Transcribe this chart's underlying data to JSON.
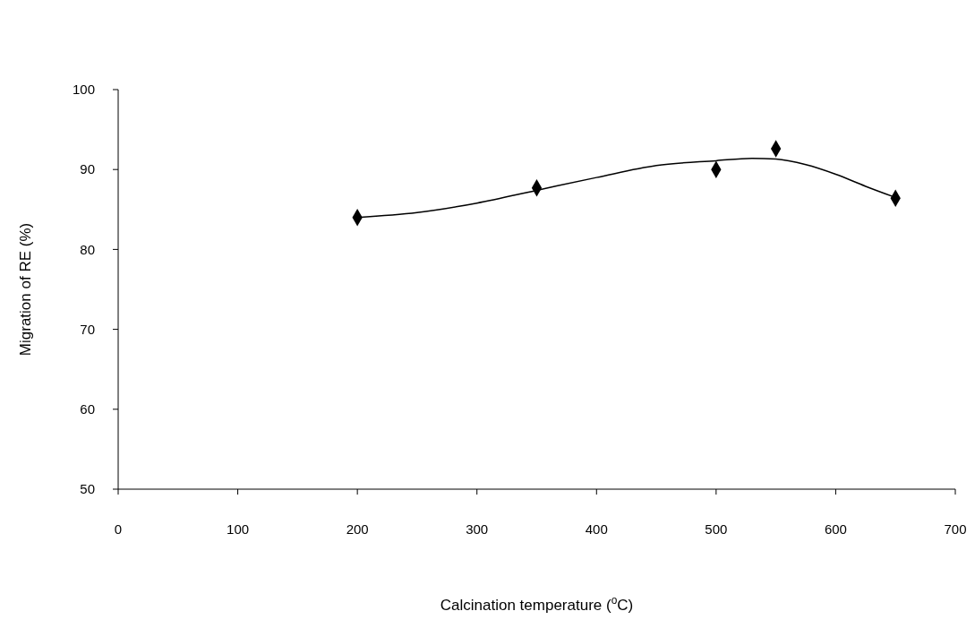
{
  "chart_data": {
    "type": "scatter",
    "xlabel": "Calcination temperature ($^{o}$C)",
    "ylabel": "Migration of RE (%)",
    "xlim": [
      0,
      700
    ],
    "xticks": [
      0,
      100,
      200,
      300,
      400,
      500,
      600,
      700
    ],
    "ylim": [
      50,
      100
    ],
    "yticks": [
      50,
      60,
      70,
      80,
      90,
      100
    ],
    "grid": false,
    "series": [
      {
        "type": "line",
        "color": "#000000",
        "marker": "none",
        "line_style": "solid",
        "x": [
          200,
          250,
          300,
          350,
          400,
          450,
          500,
          530,
          550,
          575,
          600,
          625,
          650
        ],
        "values": [
          84.0,
          84.6,
          85.8,
          87.4,
          89.0,
          90.5,
          91.1,
          91.4,
          91.3,
          90.6,
          89.4,
          87.9,
          86.5
        ]
      },
      {
        "type": "scatter",
        "color": "#000000",
        "marker": "diamond",
        "x": [
          200,
          350,
          500,
          550,
          650
        ],
        "values": [
          84.0,
          87.7,
          90.0,
          92.6,
          86.4
        ]
      }
    ]
  }
}
